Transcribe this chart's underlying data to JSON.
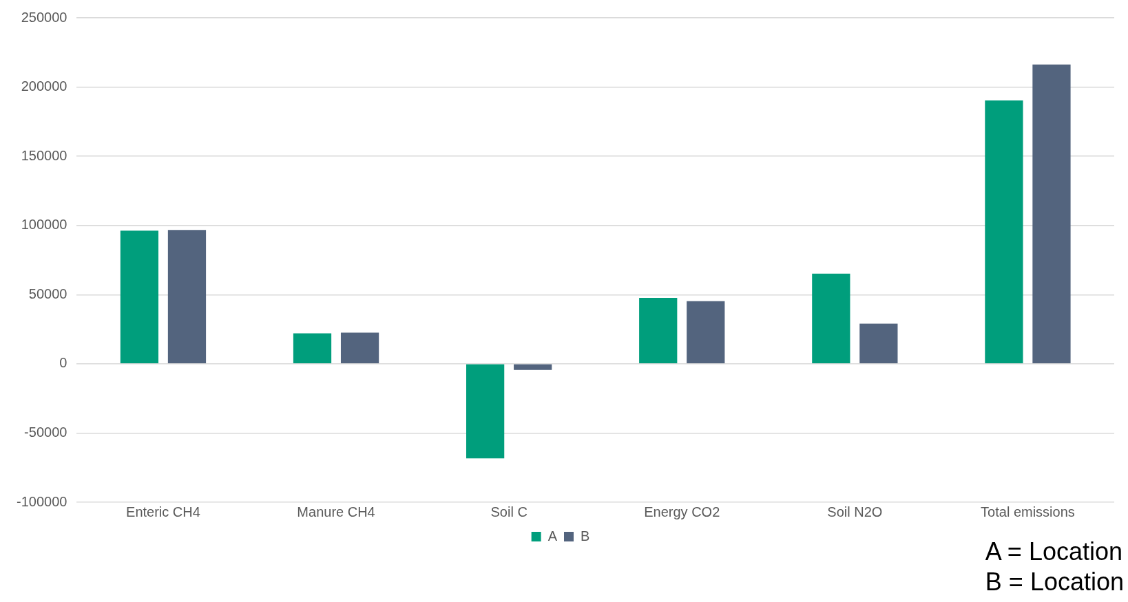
{
  "chart_data": {
    "type": "bar",
    "categories": [
      "Enteric CH4",
      "Manure CH4",
      "Soil C",
      "Energy CO2",
      "Soil N2O",
      "Total emissions"
    ],
    "series": [
      {
        "name": "A",
        "color": "#009e7c",
        "values": [
          96300,
          22100,
          -68300,
          47600,
          65200,
          190300
        ]
      },
      {
        "name": "B",
        "color": "#53647e",
        "values": [
          96800,
          22600,
          -4400,
          45300,
          29000,
          216300
        ]
      }
    ],
    "ylim": [
      -100000,
      250000
    ],
    "yticks": [
      -100000,
      -50000,
      0,
      50000,
      100000,
      150000,
      200000,
      250000
    ],
    "grid": "y",
    "legend": "bottom",
    "annotations": [
      "A = Location",
      "B = Location"
    ]
  }
}
